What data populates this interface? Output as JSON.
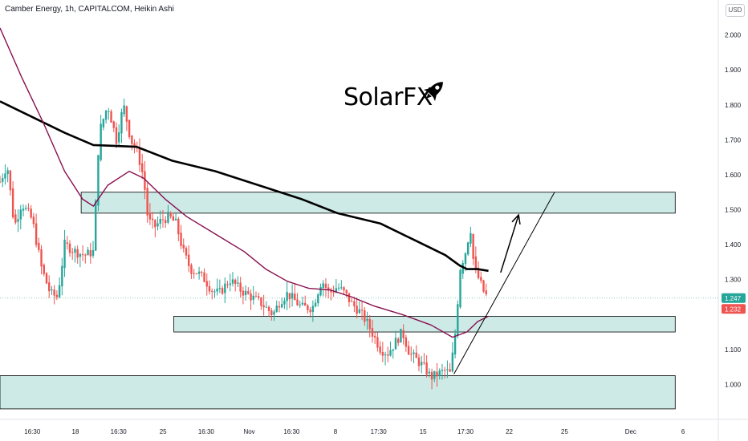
{
  "header": {
    "title": "Camber Energy, 1h, CAPITALCOM, Heikin Ashi",
    "currency": "USD"
  },
  "watermark": {
    "text": "SolarFX",
    "icon": "rocket-icon"
  },
  "colors": {
    "up": "#26a69a",
    "down": "#ef5350",
    "ma_slow": "#000000",
    "ma_fast": "#880e4f",
    "zone_fill": "#cdeae6",
    "zone_stroke": "#000000",
    "last_price_badge": "#26a69a",
    "alt_price_badge": "#ef5350"
  },
  "chart_data": {
    "type": "candlestick",
    "style": "Heikin Ashi",
    "interval": "1h",
    "ylim": [
      0.9,
      2.1
    ],
    "y_ticks": [
      {
        "value": 2.0,
        "label": "2.000"
      },
      {
        "value": 1.9,
        "label": "1.900"
      },
      {
        "value": 1.8,
        "label": "1.800"
      },
      {
        "value": 1.7,
        "label": "1.700"
      },
      {
        "value": 1.6,
        "label": "1.600"
      },
      {
        "value": 1.5,
        "label": "1.500"
      },
      {
        "value": 1.4,
        "label": "1.400"
      },
      {
        "value": 1.3,
        "label": "1.300"
      },
      {
        "value": 1.1,
        "label": "1.100"
      },
      {
        "value": 1.0,
        "label": "1.000"
      }
    ],
    "x_ticks": [
      {
        "pos": 0.045,
        "label": "16:30"
      },
      {
        "pos": 0.105,
        "label": "18"
      },
      {
        "pos": 0.165,
        "label": "16:30"
      },
      {
        "pos": 0.227,
        "label": "25"
      },
      {
        "pos": 0.287,
        "label": "16:30"
      },
      {
        "pos": 0.347,
        "label": "Nov"
      },
      {
        "pos": 0.406,
        "label": "16:30"
      },
      {
        "pos": 0.467,
        "label": "8"
      },
      {
        "pos": 0.527,
        "label": "17:30"
      },
      {
        "pos": 0.589,
        "label": "15"
      },
      {
        "pos": 0.648,
        "label": "17:30"
      },
      {
        "pos": 0.709,
        "label": "22"
      },
      {
        "pos": 0.786,
        "label": "25"
      },
      {
        "pos": 0.878,
        "label": "Dec"
      },
      {
        "pos": 0.951,
        "label": "6"
      }
    ],
    "price_labels": [
      {
        "value": 1.247,
        "label": "1.247",
        "kind": "last"
      },
      {
        "value": 1.232,
        "label": "1.232",
        "kind": "alt"
      }
    ],
    "path_points": [
      [
        0.0,
        1.58
      ],
      [
        0.01,
        1.63
      ],
      [
        0.02,
        1.45
      ],
      [
        0.03,
        1.52
      ],
      [
        0.045,
        1.47
      ],
      [
        0.058,
        1.33
      ],
      [
        0.07,
        1.26
      ],
      [
        0.08,
        1.25
      ],
      [
        0.09,
        1.4
      ],
      [
        0.105,
        1.38
      ],
      [
        0.118,
        1.37
      ],
      [
        0.13,
        1.38
      ],
      [
        0.138,
        1.72
      ],
      [
        0.15,
        1.8
      ],
      [
        0.162,
        1.7
      ],
      [
        0.172,
        1.8
      ],
      [
        0.182,
        1.7
      ],
      [
        0.192,
        1.66
      ],
      [
        0.2,
        1.59
      ],
      [
        0.206,
        1.47
      ],
      [
        0.215,
        1.45
      ],
      [
        0.225,
        1.47
      ],
      [
        0.235,
        1.48
      ],
      [
        0.245,
        1.46
      ],
      [
        0.255,
        1.38
      ],
      [
        0.265,
        1.33
      ],
      [
        0.275,
        1.32
      ],
      [
        0.285,
        1.3
      ],
      [
        0.295,
        1.27
      ],
      [
        0.305,
        1.26
      ],
      [
        0.32,
        1.3
      ],
      [
        0.335,
        1.27
      ],
      [
        0.35,
        1.25
      ],
      [
        0.365,
        1.23
      ],
      [
        0.38,
        1.2
      ],
      [
        0.39,
        1.24
      ],
      [
        0.4,
        1.26
      ],
      [
        0.41,
        1.24
      ],
      [
        0.42,
        1.22
      ],
      [
        0.435,
        1.22
      ],
      [
        0.448,
        1.3
      ],
      [
        0.458,
        1.26
      ],
      [
        0.47,
        1.28
      ],
      [
        0.48,
        1.26
      ],
      [
        0.49,
        1.23
      ],
      [
        0.5,
        1.21
      ],
      [
        0.51,
        1.18
      ],
      [
        0.52,
        1.14
      ],
      [
        0.53,
        1.1
      ],
      [
        0.54,
        1.09
      ],
      [
        0.55,
        1.12
      ],
      [
        0.56,
        1.15
      ],
      [
        0.57,
        1.09
      ],
      [
        0.58,
        1.07
      ],
      [
        0.59,
        1.05
      ],
      [
        0.6,
        1.02
      ],
      [
        0.61,
        1.03
      ],
      [
        0.62,
        1.04
      ],
      [
        0.627,
        1.03
      ],
      [
        0.635,
        1.17
      ],
      [
        0.64,
        1.33
      ],
      [
        0.648,
        1.38
      ],
      [
        0.655,
        1.45
      ],
      [
        0.66,
        1.33
      ],
      [
        0.667,
        1.3
      ],
      [
        0.672,
        1.27
      ],
      [
        0.678,
        1.25
      ]
    ],
    "series": [
      {
        "kind": "ma_slow",
        "points": [
          [
            0.0,
            1.81
          ],
          [
            0.04,
            1.77
          ],
          [
            0.09,
            1.72
          ],
          [
            0.13,
            1.685
          ],
          [
            0.19,
            1.68
          ],
          [
            0.24,
            1.64
          ],
          [
            0.3,
            1.61
          ],
          [
            0.36,
            1.57
          ],
          [
            0.42,
            1.53
          ],
          [
            0.47,
            1.49
          ],
          [
            0.53,
            1.46
          ],
          [
            0.58,
            1.41
          ],
          [
            0.62,
            1.37
          ],
          [
            0.64,
            1.34
          ],
          [
            0.65,
            1.33
          ],
          [
            0.665,
            1.33
          ],
          [
            0.68,
            1.325
          ]
        ]
      },
      {
        "kind": "ma_fast",
        "points": [
          [
            0.0,
            2.02
          ],
          [
            0.03,
            1.88
          ],
          [
            0.06,
            1.75
          ],
          [
            0.09,
            1.61
          ],
          [
            0.115,
            1.53
          ],
          [
            0.13,
            1.51
          ],
          [
            0.15,
            1.57
          ],
          [
            0.18,
            1.61
          ],
          [
            0.2,
            1.59
          ],
          [
            0.23,
            1.53
          ],
          [
            0.26,
            1.48
          ],
          [
            0.3,
            1.43
          ],
          [
            0.34,
            1.38
          ],
          [
            0.37,
            1.33
          ],
          [
            0.4,
            1.295
          ],
          [
            0.43,
            1.275
          ],
          [
            0.46,
            1.27
          ],
          [
            0.49,
            1.25
          ],
          [
            0.52,
            1.225
          ],
          [
            0.56,
            1.2
          ],
          [
            0.6,
            1.17
          ],
          [
            0.63,
            1.135
          ],
          [
            0.65,
            1.15
          ],
          [
            0.665,
            1.18
          ],
          [
            0.68,
            1.195
          ]
        ]
      }
    ],
    "zones": [
      {
        "x0": 0.113,
        "x1": 0.94,
        "y0": 1.49,
        "y1": 1.55
      },
      {
        "x0": 0.242,
        "x1": 0.94,
        "y0": 1.15,
        "y1": 1.195
      },
      {
        "x0": 0.0,
        "x1": 0.94,
        "y0": 0.93,
        "y1": 1.025
      }
    ],
    "projection": {
      "trendline": [
        [
          0.632,
          1.03
        ],
        [
          0.772,
          1.55
        ]
      ],
      "arrow": [
        [
          0.697,
          1.32
        ],
        [
          0.722,
          1.485
        ]
      ]
    }
  }
}
